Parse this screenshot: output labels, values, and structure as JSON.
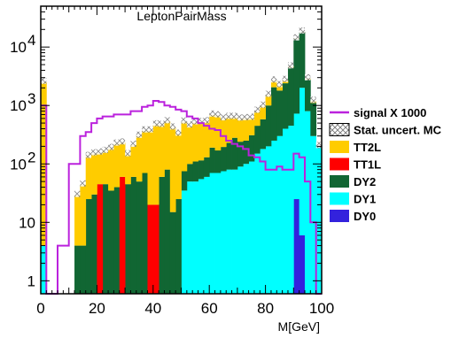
{
  "chart_data": {
    "type": "bar",
    "stacked": true,
    "title": "LeptonPairMass",
    "xlabel": "M[GeV]",
    "ylabel": "",
    "xlim": [
      0,
      100
    ],
    "ylim": [
      0.6,
      50000
    ],
    "y_scale": "log",
    "x_ticks": [
      "0",
      "20",
      "40",
      "60",
      "80",
      "100"
    ],
    "y_ticks": [
      {
        "base": "1",
        "exp": ""
      },
      {
        "base": "10",
        "exp": ""
      },
      {
        "base": "10",
        "exp": "2"
      },
      {
        "base": "10",
        "exp": "3"
      },
      {
        "base": "10",
        "exp": "4"
      }
    ],
    "bin_edges": [
      0,
      2,
      4,
      6,
      8,
      10,
      12,
      14,
      16,
      18,
      20,
      22,
      24,
      26,
      28,
      30,
      32,
      34,
      36,
      38,
      40,
      42,
      44,
      46,
      48,
      50,
      52,
      54,
      56,
      58,
      60,
      62,
      64,
      66,
      68,
      70,
      72,
      74,
      76,
      78,
      80,
      82,
      84,
      86,
      88,
      90,
      92,
      94,
      96,
      98,
      100
    ],
    "series": [
      {
        "name": "DY0",
        "color": "#3322dd",
        "values": [
          0,
          0,
          0,
          0,
          0,
          0,
          0,
          0,
          0,
          0,
          0,
          0,
          0,
          0,
          0,
          0,
          0,
          0,
          0,
          0,
          0,
          0,
          0,
          0,
          0,
          0,
          0,
          0,
          0,
          0,
          0,
          0,
          0,
          0,
          0,
          0,
          0,
          0,
          0,
          0,
          0,
          0,
          0,
          0,
          0,
          25,
          6,
          0,
          0,
          0
        ]
      },
      {
        "name": "DY1",
        "color": "#00ffff",
        "values": [
          4,
          0,
          0,
          0,
          0,
          0,
          0,
          0,
          0,
          0,
          0,
          0,
          0,
          0,
          0,
          0,
          0,
          0,
          0,
          0,
          0,
          0,
          0,
          0,
          0,
          35,
          50,
          50,
          55,
          60,
          70,
          70,
          75,
          80,
          80,
          90,
          100,
          110,
          150,
          180,
          200,
          250,
          300,
          400,
          450,
          700,
          2000,
          800,
          300,
          200
        ]
      },
      {
        "name": "DY2",
        "color": "#116633",
        "values": [
          0,
          0,
          0,
          0,
          0,
          0,
          4,
          4,
          25,
          30,
          0,
          45,
          35,
          40,
          0,
          45,
          60,
          50,
          70,
          0,
          0,
          60,
          80,
          15,
          25,
          40,
          50,
          60,
          60,
          70,
          120,
          100,
          120,
          150,
          200,
          150,
          150,
          200,
          300,
          400,
          800,
          1800,
          1500,
          2000,
          4000,
          13000,
          16000,
          2000,
          800,
          0
        ]
      },
      {
        "name": "TT1L",
        "color": "#ff0000",
        "values": [
          0,
          0,
          0,
          0,
          0,
          0,
          0,
          0,
          0,
          0,
          45,
          0,
          0,
          0,
          60,
          0,
          0,
          0,
          0,
          20,
          20,
          0,
          0,
          0,
          0,
          0,
          0,
          0,
          0,
          0,
          0,
          0,
          0,
          0,
          0,
          0,
          0,
          0,
          0,
          0,
          0,
          0,
          0,
          0,
          0,
          0,
          0,
          0,
          0,
          0
        ]
      },
      {
        "name": "TT2L",
        "color": "#ffcc00",
        "values": [
          2500,
          0,
          0,
          0,
          0,
          0,
          25,
          40,
          110,
          120,
          110,
          120,
          150,
          180,
          170,
          100,
          150,
          250,
          300,
          350,
          450,
          400,
          450,
          400,
          300,
          450,
          350,
          400,
          400,
          400,
          500,
          500,
          400,
          400,
          350,
          350,
          350,
          300,
          350,
          400,
          500,
          600,
          400,
          300,
          150,
          150,
          150,
          80,
          90,
          0
        ]
      }
    ],
    "signal": {
      "name": "signal X 1000",
      "color": "#bb22dd",
      "values": [
        1000,
        0.5,
        0.5,
        4,
        4,
        100,
        100,
        300,
        350,
        500,
        600,
        650,
        650,
        700,
        700,
        700,
        800,
        800,
        950,
        1000,
        1200,
        1150,
        1000,
        950,
        850,
        800,
        650,
        600,
        500,
        450,
        400,
        380,
        300,
        250,
        220,
        200,
        180,
        140,
        130,
        110,
        80,
        80,
        90,
        80,
        80,
        150,
        130,
        50,
        10,
        0
      ]
    },
    "uncertainty_label": "Stat. uncert. MC",
    "legend_position": "right"
  }
}
